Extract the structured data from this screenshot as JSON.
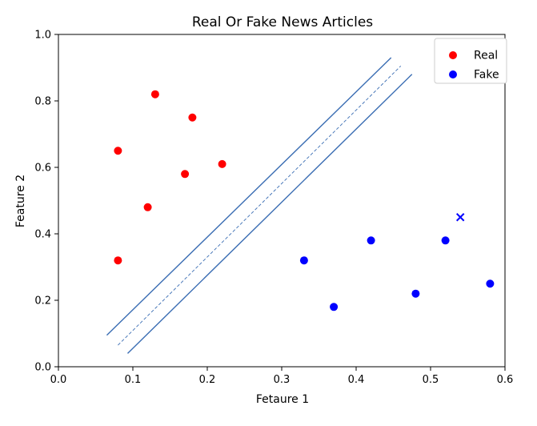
{
  "chart_data": {
    "type": "scatter",
    "title": "Real Or Fake News Articles",
    "xlabel": "Fetaure 1",
    "ylabel": "Feature 2",
    "xlim": [
      0.0,
      0.6
    ],
    "ylim": [
      0.0,
      1.0
    ],
    "xticks": [
      "0.0",
      "0.1",
      "0.2",
      "0.3",
      "0.4",
      "0.5",
      "0.6"
    ],
    "yticks": [
      "0.0",
      "0.2",
      "0.4",
      "0.6",
      "0.8",
      "1.0"
    ],
    "grid": false,
    "legend_position": "top-right",
    "series": [
      {
        "name": "Real",
        "color": "#ff0000",
        "marker": "circle",
        "points": [
          {
            "x": 0.08,
            "y": 0.65
          },
          {
            "x": 0.13,
            "y": 0.82
          },
          {
            "x": 0.18,
            "y": 0.75
          },
          {
            "x": 0.17,
            "y": 0.58
          },
          {
            "x": 0.22,
            "y": 0.61
          },
          {
            "x": 0.12,
            "y": 0.48
          },
          {
            "x": 0.08,
            "y": 0.32
          }
        ]
      },
      {
        "name": "Fake",
        "color": "#0000ff",
        "marker": "circle",
        "points": [
          {
            "x": 0.33,
            "y": 0.32
          },
          {
            "x": 0.37,
            "y": 0.18
          },
          {
            "x": 0.42,
            "y": 0.38
          },
          {
            "x": 0.48,
            "y": 0.22
          },
          {
            "x": 0.52,
            "y": 0.38
          },
          {
            "x": 0.58,
            "y": 0.25
          }
        ]
      }
    ],
    "extra_points": [
      {
        "x": 0.54,
        "y": 0.45,
        "marker": "x",
        "color": "#0000ff"
      }
    ],
    "lines": [
      {
        "role": "margin-upper",
        "style": "solid",
        "color": "#3a6db3",
        "x": [
          0.065,
          0.447
        ],
        "y": [
          0.095,
          0.93
        ]
      },
      {
        "role": "decision-boundary",
        "style": "dashed",
        "color": "#3a6db3",
        "x": [
          0.08,
          0.46
        ],
        "y": [
          0.065,
          0.905
        ]
      },
      {
        "role": "margin-lower",
        "style": "solid",
        "color": "#3a6db3",
        "x": [
          0.093,
          0.475
        ],
        "y": [
          0.04,
          0.88
        ]
      }
    ]
  }
}
